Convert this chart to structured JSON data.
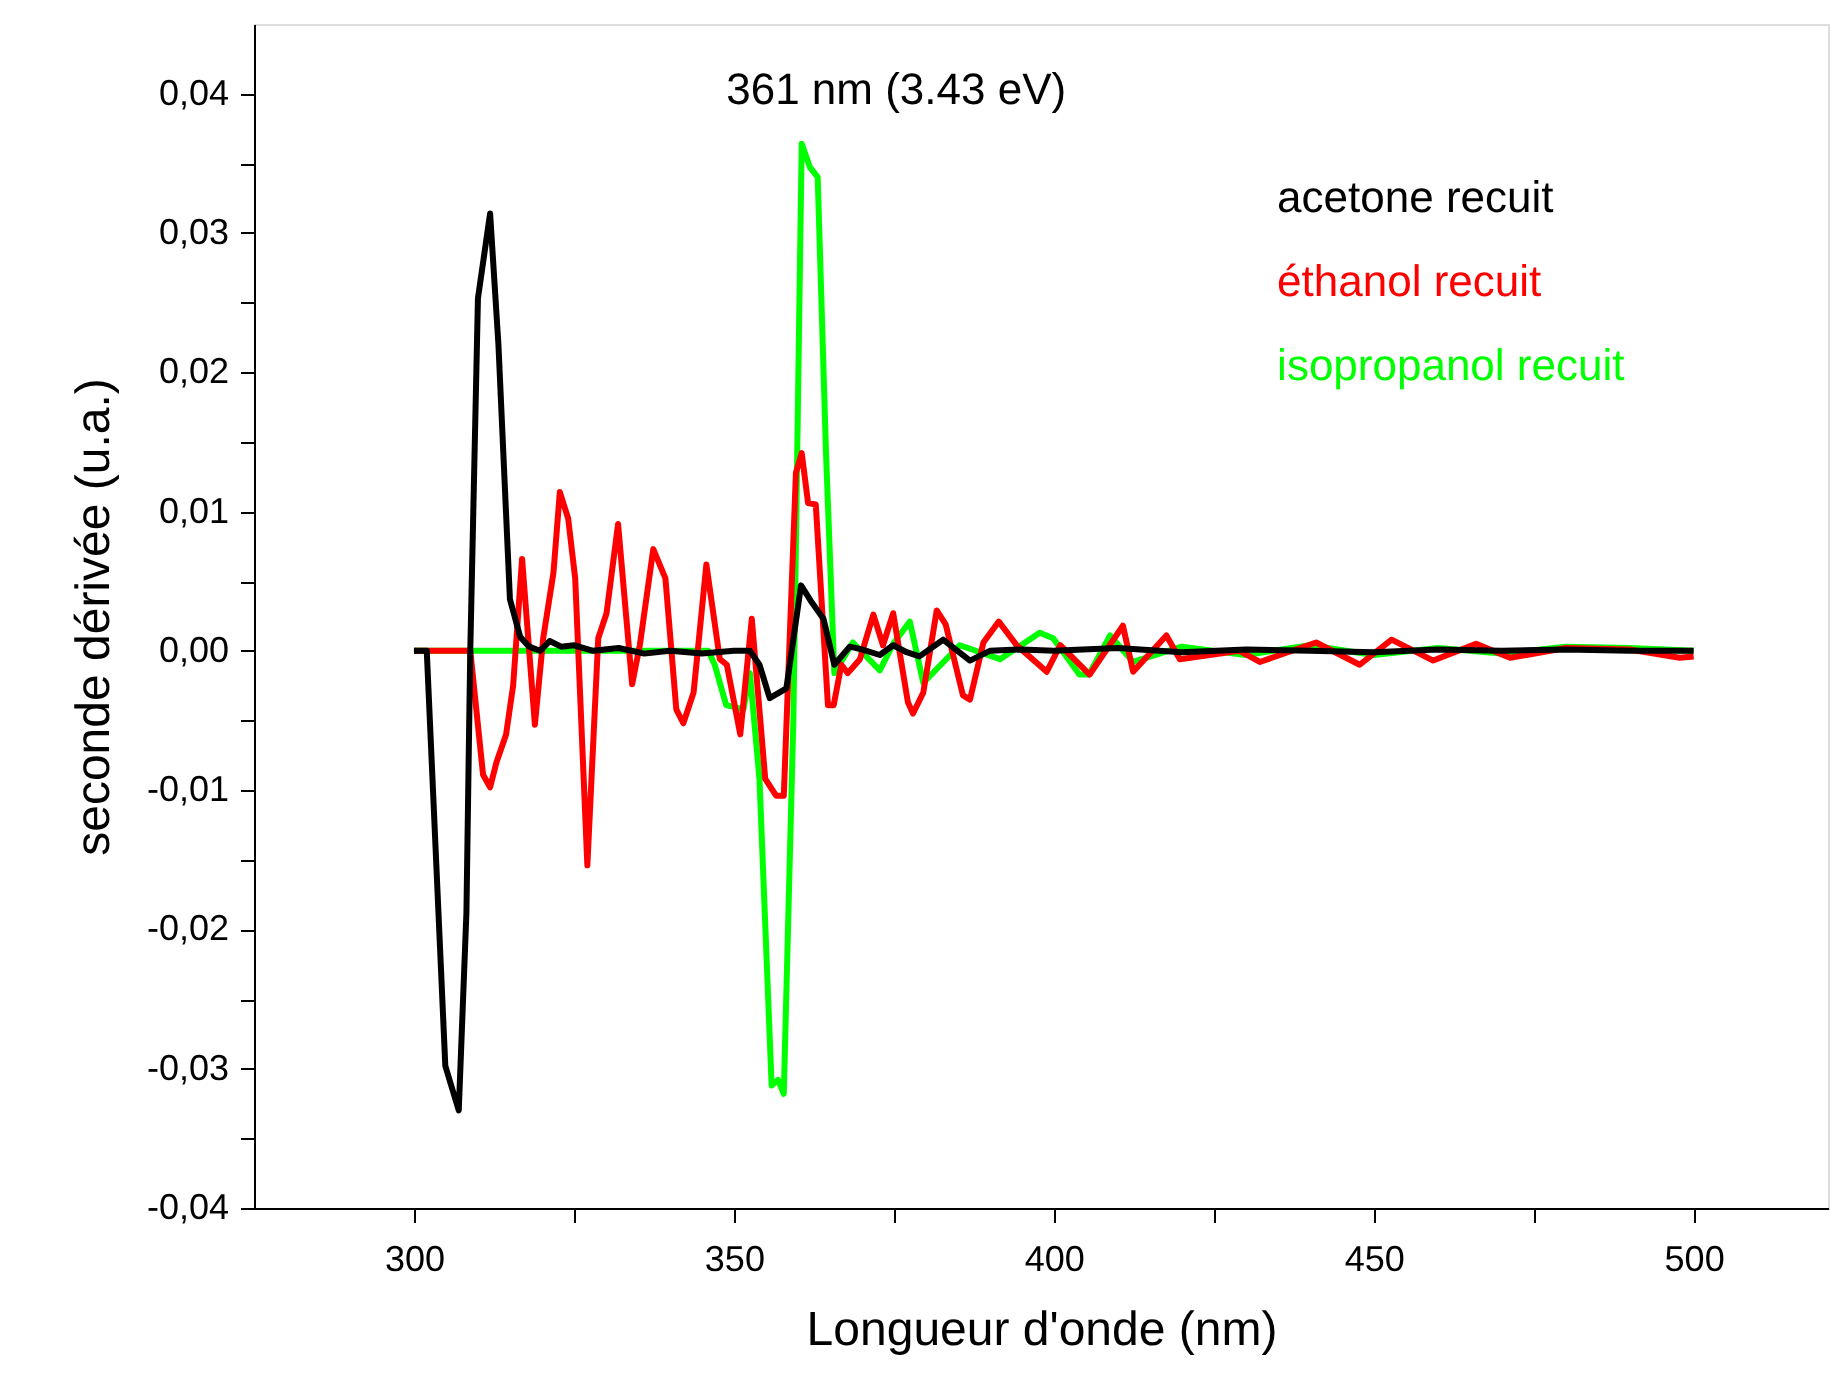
{
  "chart_data": {
    "type": "line",
    "xlabel": "Longueur d'onde (nm)",
    "ylabel": "seconde dérivée (u.a.)",
    "annotations": [
      "361 nm (3.43 eV)"
    ],
    "xlim": [
      275,
      521
    ],
    "ylim": [
      -0.04,
      0.045
    ],
    "xticks": [
      300,
      {
        "value": 325,
        "label": null
      },
      350,
      {
        "value": 375,
        "label": null
      },
      400,
      {
        "value": 425,
        "label": null
      },
      450,
      {
        "value": 475,
        "label": null
      },
      500
    ],
    "yticks": [
      {
        "value": -0.04,
        "label": "-0,04"
      },
      {
        "value": -0.035,
        "label": null
      },
      {
        "value": -0.03,
        "label": "-0,03"
      },
      {
        "value": -0.025,
        "label": null
      },
      {
        "value": -0.02,
        "label": "-0,02"
      },
      {
        "value": -0.015,
        "label": null
      },
      {
        "value": -0.01,
        "label": "-0,01"
      },
      {
        "value": -0.005,
        "label": null
      },
      {
        "value": 0,
        "label": "0,00"
      },
      {
        "value": 0.005,
        "label": null
      },
      {
        "value": 0.01,
        "label": "0,01"
      },
      {
        "value": 0.015,
        "label": null
      },
      {
        "value": 0.02,
        "label": "0,02"
      },
      {
        "value": 0.025,
        "label": null
      },
      {
        "value": 0.03,
        "label": "0,03"
      },
      {
        "value": 0.035,
        "label": null
      },
      {
        "value": 0.04,
        "label": "0,04"
      }
    ],
    "grid": false,
    "legend": "top right",
    "marker": "none",
    "line_style": "solid",
    "series": [
      {
        "name": "acetone recuit",
        "color": "#000000",
        "x": [
          300,
          302,
          304.9,
          307,
          308.2,
          308.8,
          310,
          311.9,
          313.2,
          315,
          316.6,
          318,
          319.7,
          321.2,
          323,
          325,
          328,
          332,
          336,
          340,
          345,
          350,
          352.5,
          354,
          355.6,
          358.2,
          360.5,
          362,
          364,
          365.7,
          368.1,
          370,
          372.8,
          374.9,
          377,
          379,
          382.7,
          386.9,
          390,
          395,
          400,
          410,
          420,
          430,
          440,
          450,
          460,
          470,
          480,
          490,
          500
        ],
        "values": [
          0,
          0,
          -0.0298,
          -0.033,
          -0.0188,
          0,
          0.0253,
          0.0314,
          0.022,
          0.0037,
          0.001,
          0.0003,
          0,
          0.0007,
          0.0003,
          0.0004,
          0,
          0.0002,
          -0.0002,
          0,
          -0.0002,
          0,
          0,
          -0.001,
          -0.0034,
          -0.0027,
          0.0047,
          0.0036,
          0.0023,
          -0.001,
          0.0003,
          0.0001,
          -0.0003,
          0.0004,
          -0.0001,
          -0.0004,
          0.0008,
          -0.0007,
          0,
          0.0001,
          0,
          0.0002,
          -0.0001,
          0.0001,
          0,
          -0.0001,
          0.0001,
          0,
          0.0001,
          0,
          0
        ]
      },
      {
        "name": "éthanol recuit",
        "color": "#ff0000",
        "x": [
          300,
          308.8,
          310.8,
          311.9,
          312.9,
          314.4,
          315.5,
          316.9,
          318.9,
          320.2,
          321.8,
          322.8,
          324.1,
          325.2,
          327.1,
          328.8,
          330.1,
          331.9,
          334.1,
          335.3,
          337.4,
          339.3,
          341,
          342.1,
          343.7,
          345.7,
          347.8,
          348.9,
          351,
          352.8,
          354.9,
          356.6,
          357.8,
          359.7,
          360.6,
          361.6,
          362.8,
          364.7,
          365.6,
          366.8,
          367.8,
          369.7,
          371.8,
          373.3,
          374.9,
          377.2,
          378,
          379.6,
          381.7,
          383.1,
          385.8,
          386.9,
          389,
          391.4,
          394.2,
          398.9,
          401,
          405.6,
          410.8,
          412.4,
          417.6,
          419.7,
          429,
          432.2,
          441,
          447.8,
          452.8,
          459.3,
          466,
          471.3,
          480,
          490,
          497.8,
          500
        ],
        "values": [
          0,
          0,
          -0.0089,
          -0.0098,
          -0.008,
          -0.006,
          -0.0025,
          0.0066,
          -0.0053,
          0.0009,
          0.0056,
          0.0114,
          0.0095,
          0.0052,
          -0.0154,
          0.0009,
          0.0027,
          0.0091,
          -0.0024,
          0.0004,
          0.0073,
          0.0052,
          -0.0042,
          -0.0052,
          -0.003,
          0.0062,
          -0.0006,
          -0.001,
          -0.006,
          0.0023,
          -0.0092,
          -0.0104,
          -0.0104,
          0.0128,
          0.0142,
          0.0106,
          0.0105,
          -0.0039,
          -0.0039,
          -0.001,
          -0.0016,
          -0.0006,
          0.0026,
          0.0004,
          0.0027,
          -0.0037,
          -0.0045,
          -0.003,
          0.0029,
          0.0019,
          -0.0032,
          -0.0035,
          0.0006,
          0.0021,
          0.0004,
          -0.0015,
          0.0004,
          -0.0017,
          0.0018,
          -0.0015,
          0.0011,
          -0.0006,
          0,
          -0.0008,
          0.0006,
          -0.001,
          0.0008,
          -0.0007,
          0.0005,
          -0.0005,
          0.0002,
          0.0001,
          -0.0005,
          -0.0004
        ]
      },
      {
        "name": "isopropanol recuit",
        "color": "#00ff00",
        "x": [
          300,
          346,
          347,
          348.8,
          351.5,
          352.5,
          354,
          355.9,
          356.9,
          357.8,
          359.3,
          360.6,
          361.9,
          363.1,
          364.4,
          365.7,
          368.6,
          372.8,
          374.9,
          377.5,
          379.6,
          385.3,
          391.6,
          397.8,
          399.9,
          404,
          405.5,
          408.8,
          412.4,
          420,
          430,
          440,
          450,
          460,
          470,
          480,
          490,
          500
        ],
        "values": [
          0,
          0,
          -0.001,
          -0.0039,
          -0.0042,
          -0.0016,
          -0.0092,
          -0.0312,
          -0.0308,
          -0.0318,
          -0.0049,
          0.0364,
          0.0347,
          0.034,
          0.0142,
          -0.0016,
          0.0006,
          -0.0014,
          0.0005,
          0.0021,
          -0.0023,
          0.0004,
          -0.0006,
          0.0013,
          0.0009,
          -0.0017,
          -0.0017,
          0.0011,
          -0.0008,
          0.0003,
          -0.0003,
          0.0004,
          -0.0003,
          0.0002,
          -0.0002,
          0.0003,
          0.0002,
          0
        ]
      }
    ]
  }
}
